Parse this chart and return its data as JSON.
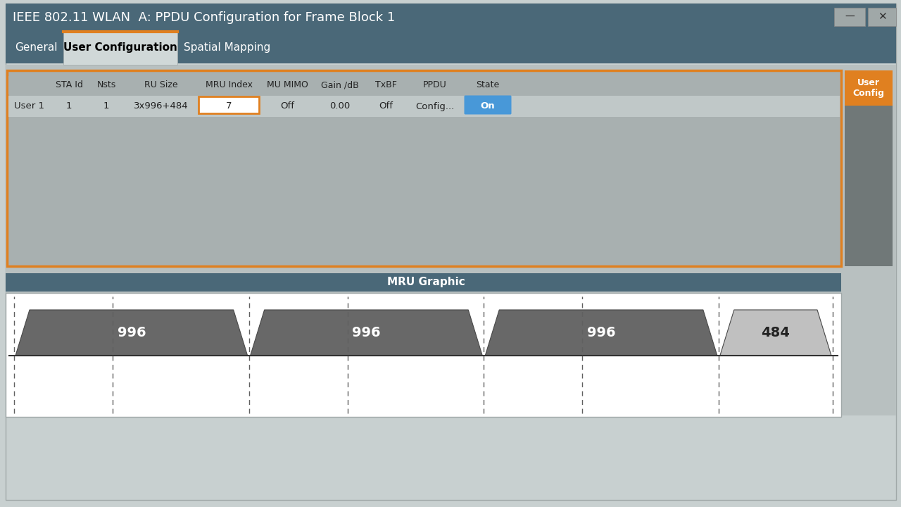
{
  "title": "IEEE 802.11 WLAN  A: PPDU Configuration for Frame Block 1",
  "tab_labels": [
    "General",
    "User Configuration",
    "Spatial Mapping"
  ],
  "active_tab": "User Configuration",
  "table_headers": [
    "",
    "STA Id",
    "Nsts",
    "RU Size",
    "MRU Index",
    "MU MIMO",
    "Gain /dB",
    "TxBF",
    "PPDU",
    "State"
  ],
  "table_row": [
    "User 1",
    "1",
    "1",
    "3x996+484",
    "7",
    "Off",
    "0.00",
    "Off",
    "Config...",
    "On"
  ],
  "mru_graphic_title": "MRU Graphic",
  "trapezoid_units": [
    996,
    996,
    996,
    484
  ],
  "trapezoid_colors": [
    "#686868",
    "#686868",
    "#686868",
    "#c0c0c0"
  ],
  "trapezoid_labels": [
    "996",
    "996",
    "996",
    "484"
  ],
  "title_bg": "#4a6878",
  "title_fg": "#ffffff",
  "tab_bar_bg": "#4a6878",
  "tab_active_bg": "#d0d8d8",
  "tab_inactive_text": "#ffffff",
  "tab_active_text": "#000000",
  "table_border_color": "#e08020",
  "table_bg": "#a8b0b0",
  "data_row_bg": "#c0c8c8",
  "mru_header_bg": "#4a6878",
  "mru_header_fg": "#ffffff",
  "mru_plot_bg": "#ffffff",
  "state_on_bg": "#4898d8",
  "state_on_fg": "#ffffff",
  "mru_index_border": "#e08020",
  "right_panel_bg": "#707878",
  "right_panel_label_bg": "#e08020",
  "window_outer_bg": "#c8d0d0",
  "btn_bg": "#a0a8a8",
  "outer_bg": "#c8d0d0"
}
